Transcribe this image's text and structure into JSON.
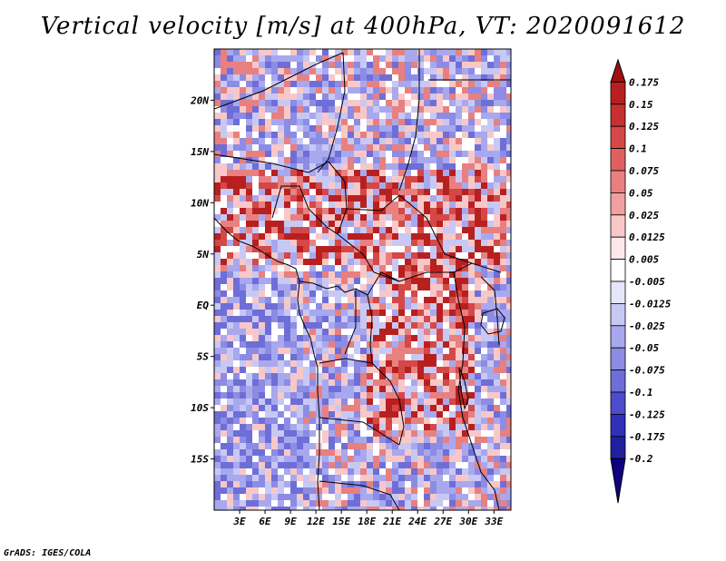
{
  "title": "Vertical velocity [m/s] at 400hPa, VT: 2020091612",
  "credit": "GrADS: IGES/COLA",
  "map": {
    "lon_range": [
      0,
      35
    ],
    "lat_range": [
      -20,
      25
    ],
    "lat_ticks": [
      "20N",
      "15N",
      "10N",
      "5N",
      "EQ",
      "5S",
      "10S",
      "15S"
    ],
    "lon_ticks": [
      "3E",
      "6E",
      "9E",
      "12E",
      "15E",
      "18E",
      "21E",
      "24E",
      "27E",
      "30E",
      "33E"
    ]
  },
  "colorbar": {
    "labels": [
      "0.175",
      "0.15",
      "0.125",
      "0.1",
      "0.075",
      "0.05",
      "0.025",
      "0.0125",
      "0.005",
      "-0.005",
      "-0.0125",
      "-0.025",
      "-0.05",
      "-0.075",
      "-0.1",
      "-0.125",
      "-0.175",
      "-0.2"
    ],
    "colors": [
      "#a01010",
      "#b82020",
      "#c83030",
      "#d44848",
      "#e06060",
      "#e88080",
      "#f0a0a0",
      "#f8c8c8",
      "#fce8e8",
      "#ffffff",
      "#e6e6fa",
      "#c8c8f4",
      "#a8a8ee",
      "#8c8ce4",
      "#6e6ed8",
      "#4c4ccc",
      "#3030b8",
      "#2020a0",
      "#100080"
    ]
  },
  "colors": {
    "positive": "#d03030",
    "negative": "#6060e0",
    "frame": "#000000"
  }
}
